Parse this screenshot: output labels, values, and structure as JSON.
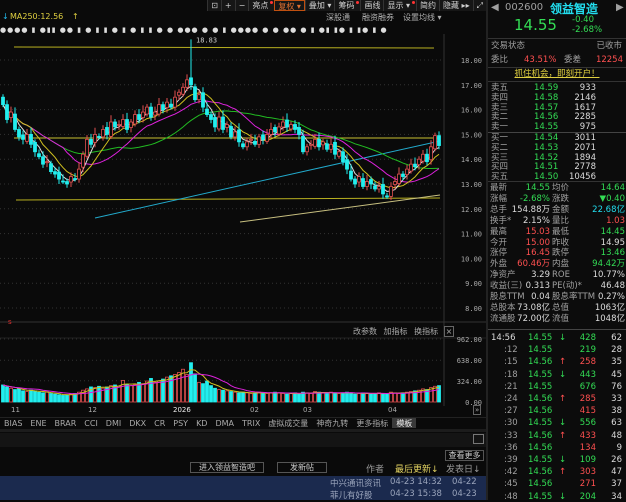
{
  "toolbar": {
    "items": [
      {
        "label": "⊡",
        "icon": "lock-icon"
      },
      {
        "label": "+",
        "icon": "zoom-in-icon"
      },
      {
        "label": "−",
        "icon": "zoom-out-icon"
      },
      {
        "label": "亮点",
        "dot": true
      },
      {
        "label": "复权 ▾",
        "active": true
      },
      {
        "label": "叠加 ▾"
      },
      {
        "label": "筹码",
        "dot": true
      },
      {
        "label": "画线"
      },
      {
        "label": "显示 ▾",
        "dot": true
      },
      {
        "label": "简约"
      },
      {
        "label": "隐藏 ▸▸"
      },
      {
        "label": "⤢",
        "icon": "fullscreen-icon"
      }
    ]
  },
  "chart_header": {
    "ma250": "MA250:12.56",
    "links": [
      "深股通",
      "融资融券",
      "设置均线 ▾"
    ]
  },
  "marker_strip": "●●●● ▮  ●▮▮  ●● ▮  ● ▮  ▮  ● ▮   ● ▮  ▮   ●   ●   ●●● ●  ●   ▮   ●●●●  ●   ●  ●●   ● ▮ ●▮ ▮●  ▮  ▮● ▮ ●",
  "chart_data": {
    "type": "candlestick",
    "price_axis": [
      "18.00",
      "17.00",
      "16.00",
      "15.00",
      "14.00",
      "13.00",
      "12.00",
      "11.00",
      "10.00",
      "9.00",
      "8.00"
    ],
    "ylim": [
      7.6,
      19.0
    ],
    "high_annotation": "18.83",
    "closes": [
      16.2,
      15.6,
      15.9,
      15.2,
      14.9,
      14.8,
      15.0,
      14.6,
      14.3,
      14.1,
      13.8,
      13.9,
      13.5,
      13.4,
      13.2,
      13.1,
      13.0,
      13.3,
      13.2,
      13.6,
      14.2,
      14.8,
      14.6,
      15.0,
      14.9,
      15.2,
      15.0,
      15.5,
      15.3,
      15.4,
      15.6,
      15.2,
      15.5,
      15.8,
      15.6,
      15.9,
      16.1,
      15.7,
      15.9,
      16.2,
      16.0,
      16.3,
      16.1,
      16.5,
      16.7,
      16.9,
      17.2,
      17.0,
      16.4,
      16.6,
      16.1,
      15.8,
      15.6,
      15.3,
      15.7,
      15.2,
      15.4,
      14.9,
      15.1,
      14.7,
      14.5,
      14.7,
      14.8,
      14.6,
      14.9,
      14.8,
      15.0,
      15.2,
      15.1,
      15.3,
      15.5,
      15.3,
      15.4,
      15.2,
      15.0,
      14.3,
      14.5,
      14.6,
      14.8,
      14.5,
      14.7,
      14.4,
      14.6,
      14.2,
      14.3,
      13.9,
      13.6,
      13.2,
      13.0,
      13.3,
      12.9,
      13.1,
      13.0,
      12.8,
      12.9,
      12.6,
      12.5,
      12.9,
      13.1,
      13.4,
      13.3,
      13.6,
      13.8,
      13.7,
      14.0,
      14.2,
      13.9,
      14.5,
      14.95,
      14.55
    ],
    "volumes": [
      260,
      230,
      210,
      190,
      200,
      170,
      160,
      180,
      170,
      150,
      140,
      150,
      130,
      120,
      110,
      100,
      110,
      120,
      130,
      150,
      180,
      200,
      230,
      220,
      240,
      210,
      230,
      250,
      260,
      240,
      330,
      270,
      250,
      260,
      300,
      280,
      320,
      360,
      300,
      320,
      350,
      380,
      400,
      420,
      450,
      500,
      420,
      600,
      430,
      300,
      280,
      320,
      250,
      210,
      190,
      180,
      170,
      160,
      150,
      140,
      150,
      140,
      130,
      140,
      150,
      140,
      130,
      140,
      150,
      140,
      130,
      120,
      130,
      140,
      120,
      150,
      140,
      130,
      160,
      150,
      140,
      130,
      150,
      140,
      130,
      140,
      150,
      140,
      120,
      130,
      140,
      130,
      120,
      130,
      140,
      120,
      130,
      150,
      140,
      130,
      140,
      150,
      160,
      170,
      180,
      200,
      190,
      220,
      240,
      250
    ],
    "volume_axis": [
      "962.00",
      "638.00",
      "324.00",
      "0.00"
    ],
    "date_ticks": [
      "11",
      "12",
      "2026",
      "02",
      "03",
      "04"
    ],
    "ma_colors": {
      "ma5": "#dddddd",
      "ma10": "#d0c020",
      "ma20": "#dd22dd",
      "ma60": "#22bb22",
      "ma250": "#22aacc"
    },
    "up_color": "#e05050",
    "down_color": "#22eeee"
  },
  "volume_panel": {
    "buttons": [
      "改参数",
      "加指标",
      "换指标"
    ]
  },
  "indicator_tabs": [
    "BIAS",
    "ENE",
    "BRAR",
    "CCI",
    "DMI",
    "DKX",
    "CR",
    "PSY",
    "KD",
    "DMA",
    "TRIX",
    "虚拟成交量",
    "神奇九转",
    "更多指标",
    "模板"
  ],
  "forum": {
    "more": "查看更多",
    "enter": "进入领益智造吧",
    "post": "发新帖",
    "author": "作者",
    "last_update": "最后更新↓",
    "publish_date": "发表日↓",
    "rows": [
      {
        "author": "中兴通讯资讯",
        "updated": "04-23 14:32",
        "date": "04-22"
      },
      {
        "author": "菲儿有好股",
        "updated": "04-23 15:38",
        "date": "04-23"
      }
    ]
  },
  "quote": {
    "code": "002600",
    "name": "领益智造",
    "price": "14.55",
    "change": "-0.40",
    "change_pct": "-2.68%",
    "status_label": "交易状态",
    "status": "已收市",
    "wb_label": "委比",
    "wb": "43.51%",
    "wc_label": "委差",
    "wc": "12254",
    "banner": "抓住机会，即刻开户！",
    "asks": [
      {
        "l": "卖五",
        "p": "14.59",
        "v": "933"
      },
      {
        "l": "卖四",
        "p": "14.58",
        "v": "2146"
      },
      {
        "l": "卖三",
        "p": "14.57",
        "v": "1617"
      },
      {
        "l": "卖二",
        "p": "14.56",
        "v": "2285"
      },
      {
        "l": "卖一",
        "p": "14.55",
        "v": "975"
      }
    ],
    "bids": [
      {
        "l": "买一",
        "p": "14.54",
        "v": "3011"
      },
      {
        "l": "买二",
        "p": "14.53",
        "v": "2071"
      },
      {
        "l": "买三",
        "p": "14.52",
        "v": "1894"
      },
      {
        "l": "买四",
        "p": "14.51",
        "v": "2778"
      },
      {
        "l": "买五",
        "p": "14.50",
        "v": "10456"
      }
    ],
    "stats": [
      {
        "a": "最新",
        "av": "14.55",
        "ac": "g",
        "b": "均价",
        "bv": "14.64",
        "bc": "g"
      },
      {
        "a": "涨幅",
        "av": "-2.68%",
        "ac": "g",
        "b": "涨跌",
        "bv": "▼0.40",
        "bc": "g"
      },
      {
        "a": "总手",
        "av": "154.88万",
        "ac": "w",
        "b": "金额",
        "bv": "22.68亿",
        "bc": "c"
      },
      {
        "a": "换手*",
        "av": "2.15%",
        "ac": "w",
        "b": "量比",
        "bv": "1.03",
        "bc": "r"
      },
      {
        "a": "最高",
        "av": "15.03",
        "ac": "r",
        "b": "最低",
        "bv": "14.45",
        "bc": "g"
      },
      {
        "a": "今开",
        "av": "15.00",
        "ac": "r",
        "b": "昨收",
        "bv": "14.95",
        "bc": "w"
      },
      {
        "a": "涨停",
        "av": "16.45",
        "ac": "r",
        "b": "跌停",
        "bv": "13.46",
        "bc": "g"
      },
      {
        "a": "外盘",
        "av": "60.46万",
        "ac": "r",
        "b": "内盘",
        "bv": "94.42万",
        "bc": "g"
      },
      {
        "a": "净资产",
        "av": "3.29",
        "ac": "w",
        "b": "ROE",
        "bv": "10.77%",
        "bc": "w"
      },
      {
        "a": "收益(三)",
        "av": "0.313",
        "ac": "w",
        "b": "PE(动)*",
        "bv": "46.48",
        "bc": "w"
      },
      {
        "a": "股息TTM",
        "av": "0.04",
        "ac": "w",
        "b": "股息率TTM",
        "bv": "0.27%",
        "bc": "w"
      },
      {
        "a": "总股本",
        "av": "73.08亿",
        "ac": "w",
        "b": "总值",
        "bv": "1063亿",
        "bc": "w"
      },
      {
        "a": "流通股",
        "av": "72.00亿",
        "ac": "w",
        "b": "流值",
        "bv": "1048亿",
        "bc": "w"
      }
    ],
    "ticks": [
      {
        "t": "14:56",
        "p": "14.55",
        "d": "↓",
        "v": "428",
        "vc": "g",
        "n": "62"
      },
      {
        "t": ":12",
        "p": "14.55",
        "d": "",
        "v": "219",
        "vc": "g",
        "n": "28"
      },
      {
        "t": ":15",
        "p": "14.56",
        "d": "↑",
        "v": "258",
        "vc": "r",
        "n": "35"
      },
      {
        "t": ":18",
        "p": "14.55",
        "d": "↓",
        "v": "443",
        "vc": "g",
        "n": "45"
      },
      {
        "t": ":21",
        "p": "14.55",
        "d": "",
        "v": "676",
        "vc": "g",
        "n": "76"
      },
      {
        "t": ":24",
        "p": "14.56",
        "d": "↑",
        "v": "285",
        "vc": "r",
        "n": "33"
      },
      {
        "t": ":27",
        "p": "14.56",
        "d": "",
        "v": "415",
        "vc": "r",
        "n": "38"
      },
      {
        "t": ":30",
        "p": "14.55",
        "d": "↓",
        "v": "556",
        "vc": "g",
        "n": "63"
      },
      {
        "t": ":33",
        "p": "14.56",
        "d": "↑",
        "v": "433",
        "vc": "r",
        "n": "48"
      },
      {
        "t": ":36",
        "p": "14.56",
        "d": "",
        "v": "134",
        "vc": "r",
        "n": "9"
      },
      {
        "t": ":39",
        "p": "14.55",
        "d": "↓",
        "v": "109",
        "vc": "g",
        "n": "26"
      },
      {
        "t": ":42",
        "p": "14.56",
        "d": "↑",
        "v": "303",
        "vc": "r",
        "n": "47"
      },
      {
        "t": ":45",
        "p": "14.56",
        "d": "",
        "v": "271",
        "vc": "r",
        "n": "37"
      },
      {
        "t": ":48",
        "p": "14.55",
        "d": "↓",
        "v": "204",
        "vc": "g",
        "n": "34"
      }
    ]
  }
}
